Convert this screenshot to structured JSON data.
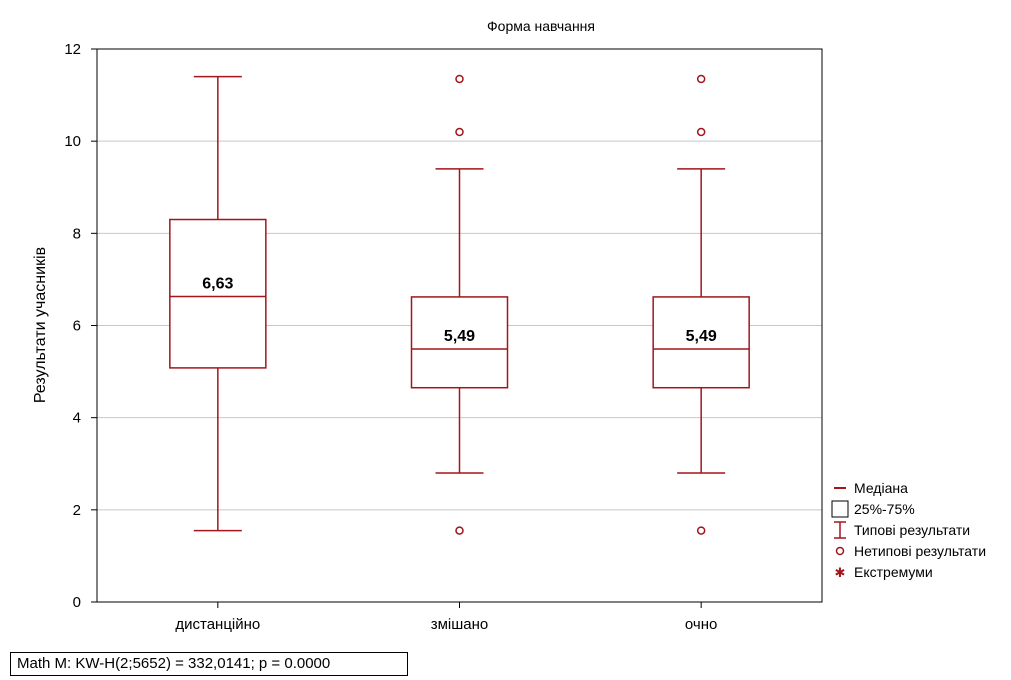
{
  "chart_data": {
    "type": "box",
    "title": "Форма навчання",
    "xlabel": "",
    "ylabel": "Результати учасників",
    "ylim": [
      0,
      12
    ],
    "yticks": [
      "0",
      "2",
      "4",
      "6",
      "8",
      "10",
      "12"
    ],
    "grid": true,
    "categories": [
      "дистанційно",
      "змішано",
      "очно"
    ],
    "boxes": [
      {
        "category": "дистанційно",
        "whisker_low": 1.55,
        "q1": 5.08,
        "median": 6.63,
        "q3": 8.3,
        "whisker_high": 11.4,
        "median_label": "6,63",
        "outliers": []
      },
      {
        "category": "змішано",
        "whisker_low": 2.8,
        "q1": 4.65,
        "median": 5.49,
        "q3": 6.62,
        "whisker_high": 9.4,
        "median_label": "5,49",
        "outliers": [
          1.55,
          10.2,
          11.35
        ]
      },
      {
        "category": "очно",
        "whisker_low": 2.8,
        "q1": 4.65,
        "median": 5.49,
        "q3": 6.62,
        "whisker_high": 9.4,
        "median_label": "5,49",
        "outliers": [
          1.55,
          10.2,
          11.35
        ]
      }
    ],
    "legend": {
      "placement": "right",
      "items": [
        "Медіана",
        "25%-75%",
        "Типові результати",
        "Нетипові результати",
        "Екстремуми"
      ]
    },
    "colors": {
      "box": "#a0161c",
      "grid": "#c8c8c8",
      "axis": "#000000"
    },
    "stats_text": "Math   M:  KW-H(2;5652) = 332,0141; p = 0.0000"
  }
}
